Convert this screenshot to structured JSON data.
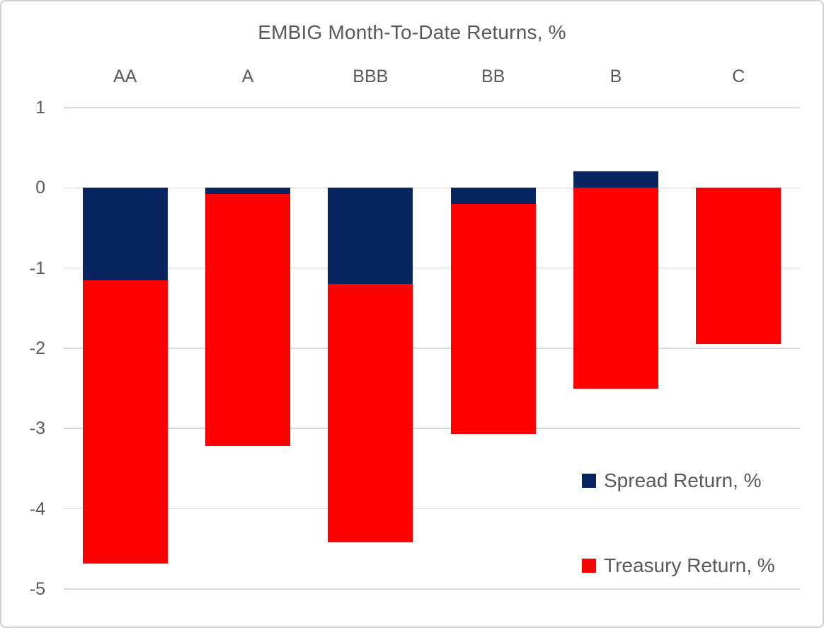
{
  "chart_data": {
    "type": "bar",
    "stacked": true,
    "title": "EMBIG Month-To-Date Returns, %",
    "categories": [
      "AA",
      "A",
      "BBB",
      "BB",
      "B",
      "C"
    ],
    "series": [
      {
        "name": "Spread Return, %",
        "color": "#08255f",
        "values": [
          -1.15,
          -0.08,
          -1.2,
          -0.2,
          0.21,
          0.0
        ]
      },
      {
        "name": "Treasury Return, %",
        "color": "#ff0000",
        "values": [
          -3.53,
          -3.14,
          -3.22,
          -2.87,
          -2.5,
          -1.95
        ]
      }
    ],
    "stack_totals": [
      -4.68,
      -3.22,
      -4.42,
      -3.07,
      -2.29,
      -1.95
    ],
    "ylim": [
      -5,
      1
    ],
    "yticks": [
      1,
      0,
      -1,
      -2,
      -3,
      -4,
      -5
    ],
    "grid": true,
    "category_label_position": "top",
    "legend_position": "inside-bottom-right",
    "text_color": "#595959",
    "gridline_color": "#d9d9d9"
  }
}
